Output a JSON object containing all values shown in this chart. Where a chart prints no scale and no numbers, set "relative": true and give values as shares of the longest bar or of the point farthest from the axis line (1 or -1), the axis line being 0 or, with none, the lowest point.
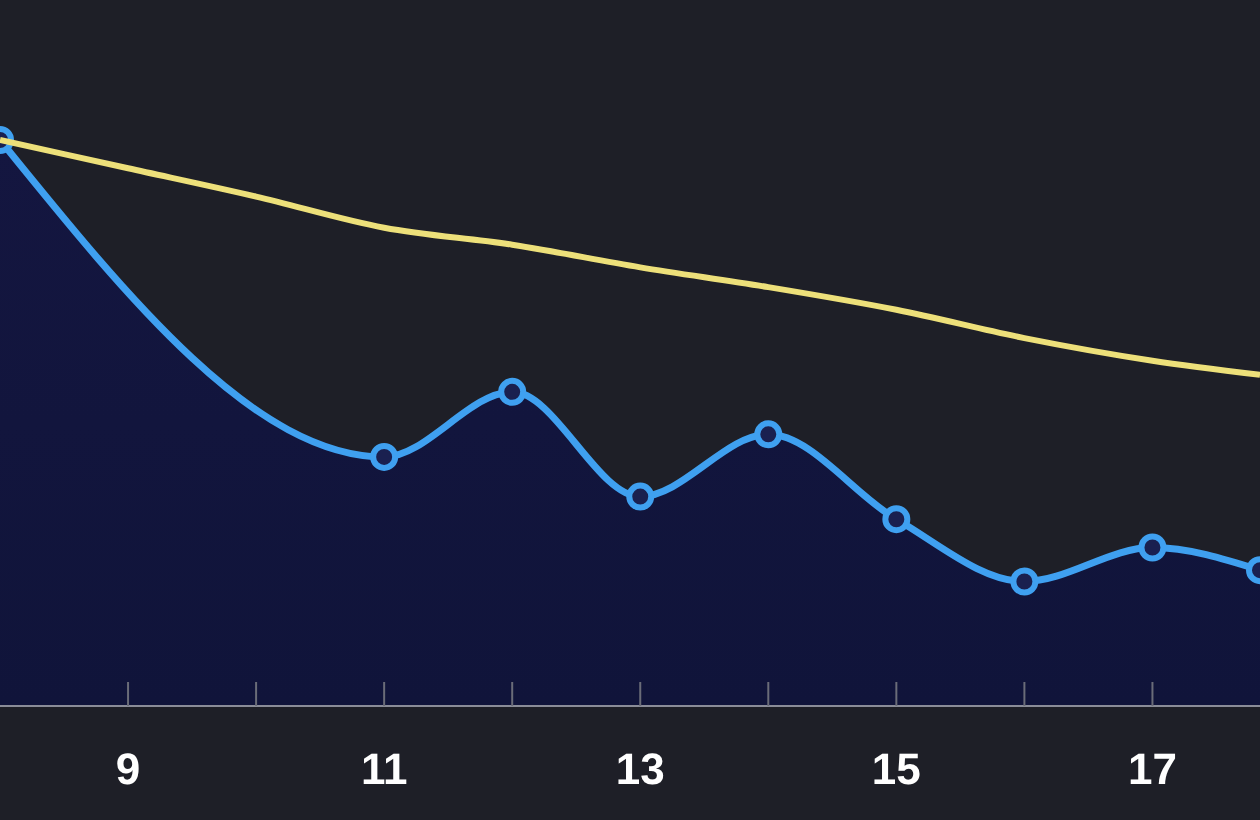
{
  "chart_data": {
    "type": "line",
    "relative": true,
    "xlim": [
      8,
      17.84
    ],
    "xticks": [
      9,
      {
        "value": 10,
        "label": null
      },
      11,
      {
        "value": 12,
        "label": null
      },
      13,
      {
        "value": 14,
        "label": null
      },
      15,
      {
        "value": 16,
        "label": null
      },
      17
    ],
    "series": [
      {
        "type": "area",
        "color": "#3fa0f0",
        "x": [
          8,
          11,
          12,
          13,
          14,
          15,
          16,
          17,
          17.84
        ],
        "values": [
          1.0,
          0.44,
          0.555,
          0.37,
          0.48,
          0.33,
          0.22,
          0.28,
          0.24
        ],
        "marker": "circle"
      },
      {
        "color": "#ede07a",
        "x": [
          8,
          9,
          10,
          11,
          12,
          13,
          14,
          15,
          16,
          17,
          17.84
        ],
        "values": [
          1.0,
          0.95,
          0.9,
          0.845,
          0.815,
          0.775,
          0.74,
          0.7,
          0.65,
          0.61,
          0.585
        ]
      }
    ],
    "grid": false
  }
}
